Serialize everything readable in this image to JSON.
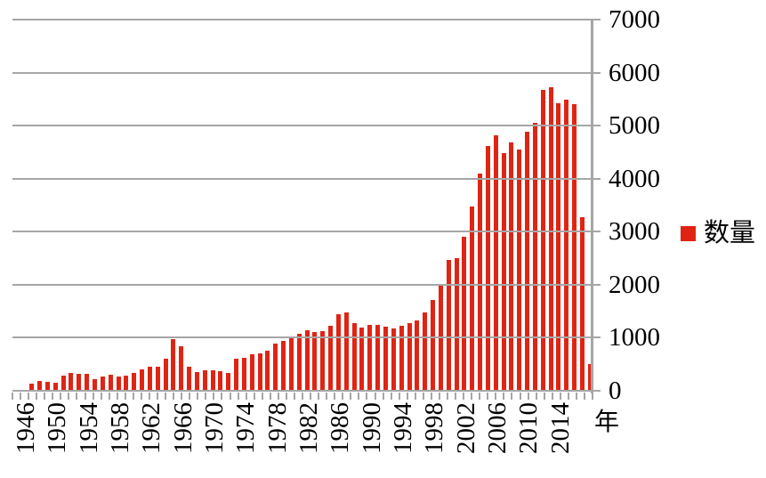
{
  "chart_data": {
    "type": "bar",
    "title": "",
    "series_name": "数量",
    "xlabel": "年",
    "ylabel": "",
    "ylim": [
      0,
      7000
    ],
    "y_ticks": [
      0,
      1000,
      2000,
      3000,
      4000,
      5000,
      6000,
      7000
    ],
    "x_tick_labels": [
      "1946",
      "1950",
      "1954",
      "1958",
      "1962",
      "1966",
      "1970",
      "1974",
      "1978",
      "1982",
      "1986",
      "1990",
      "1994",
      "1998",
      "2002",
      "2006",
      "2010",
      "2014"
    ],
    "x_tick_label_interval_years": 4,
    "grid": true,
    "legend_position": "right",
    "value_axis_position": "right",
    "bar_color": "#e02414",
    "grid_color": "#a6a6a6",
    "text_color": "#000000",
    "years": [
      1946,
      1947,
      1948,
      1949,
      1950,
      1951,
      1952,
      1953,
      1954,
      1955,
      1956,
      1957,
      1958,
      1959,
      1960,
      1961,
      1962,
      1963,
      1964,
      1965,
      1966,
      1967,
      1968,
      1969,
      1970,
      1971,
      1972,
      1973,
      1974,
      1975,
      1976,
      1977,
      1978,
      1979,
      1980,
      1981,
      1982,
      1983,
      1984,
      1985,
      1986,
      1987,
      1988,
      1989,
      1990,
      1991,
      1992,
      1993,
      1994,
      1995,
      1996,
      1997,
      1998,
      1999,
      2000,
      2001,
      2002,
      2003,
      2004,
      2005,
      2006,
      2007,
      2008,
      2009,
      2010,
      2011,
      2012,
      2013,
      2014,
      2015,
      2016,
      2017
    ],
    "values": [
      140,
      180,
      168,
      156,
      290,
      336,
      313,
      313,
      218,
      274,
      308,
      274,
      285,
      336,
      403,
      448,
      459,
      600,
      970,
      836,
      460,
      350,
      388,
      388,
      374,
      330,
      599,
      626,
      693,
      710,
      750,
      889,
      934,
      1018,
      1074,
      1141,
      1113,
      1129,
      1225,
      1448,
      1480,
      1270,
      1197,
      1242,
      1242,
      1214,
      1169,
      1225,
      1281,
      1326,
      1482,
      1705,
      2000,
      2460,
      2505,
      2903,
      3468,
      4094,
      4614,
      4821,
      4485,
      4682,
      4541,
      4878,
      5055,
      5680,
      5725,
      5430,
      5486,
      5402,
      3280,
      506
    ]
  },
  "legend": {
    "label": "数量"
  },
  "axis": {
    "title": "年",
    "zero_label": "0"
  }
}
